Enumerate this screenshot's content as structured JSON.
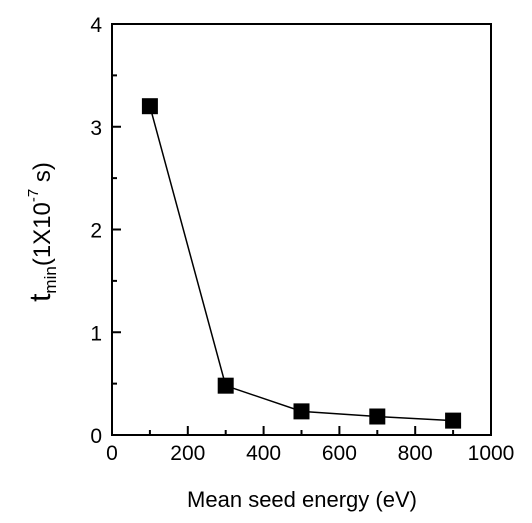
{
  "chart_data": {
    "type": "line",
    "x": [
      100,
      300,
      500,
      700,
      900
    ],
    "values": [
      3.2,
      0.48,
      0.23,
      0.18,
      0.14
    ],
    "color": "#000000",
    "xlim": [
      0,
      1000
    ],
    "xticks": [
      0,
      200,
      400,
      600,
      800,
      1000
    ],
    "xminorticks": [
      100,
      300,
      500,
      700,
      900
    ],
    "ylim": [
      0,
      4
    ],
    "yticks": [
      0,
      1,
      2,
      3,
      4
    ],
    "yminorticks": [
      0.5,
      1.5,
      2.5,
      3.5
    ],
    "xlabel": "Mean seed energy (eV)",
    "ylabel": [
      "t",
      "min",
      "(1X10",
      "-7",
      " s)"
    ]
  }
}
